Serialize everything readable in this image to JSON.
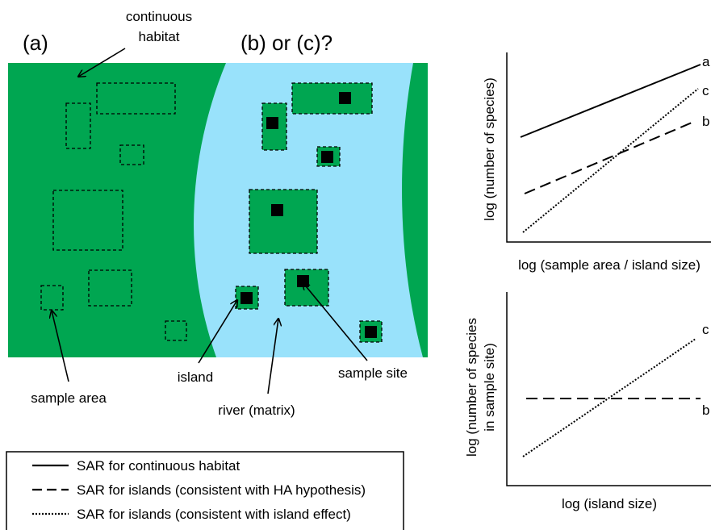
{
  "map": {
    "label_a": "(a)",
    "label_bc": "(b) or (c)?",
    "continuous_habitat": [
      "continuous",
      "habitat"
    ],
    "sample_area": "sample area",
    "island": "island",
    "river": "river (matrix)",
    "sample_site": "sample site"
  },
  "legend": [
    "SAR for continuous habitat",
    "SAR for islands (consistent with HA hypothesis)",
    "SAR for islands (consistent with island effect)"
  ],
  "graph_top": {
    "y_label": "log (number of species)",
    "x_label": "log (sample area / island size)",
    "line_labels": [
      "a",
      "c",
      "b"
    ]
  },
  "graph_bottom": {
    "y_label": [
      "log (number of species",
      "in sample site)"
    ],
    "x_label": "log (island size)",
    "line_labels": [
      "c",
      "b"
    ]
  }
}
